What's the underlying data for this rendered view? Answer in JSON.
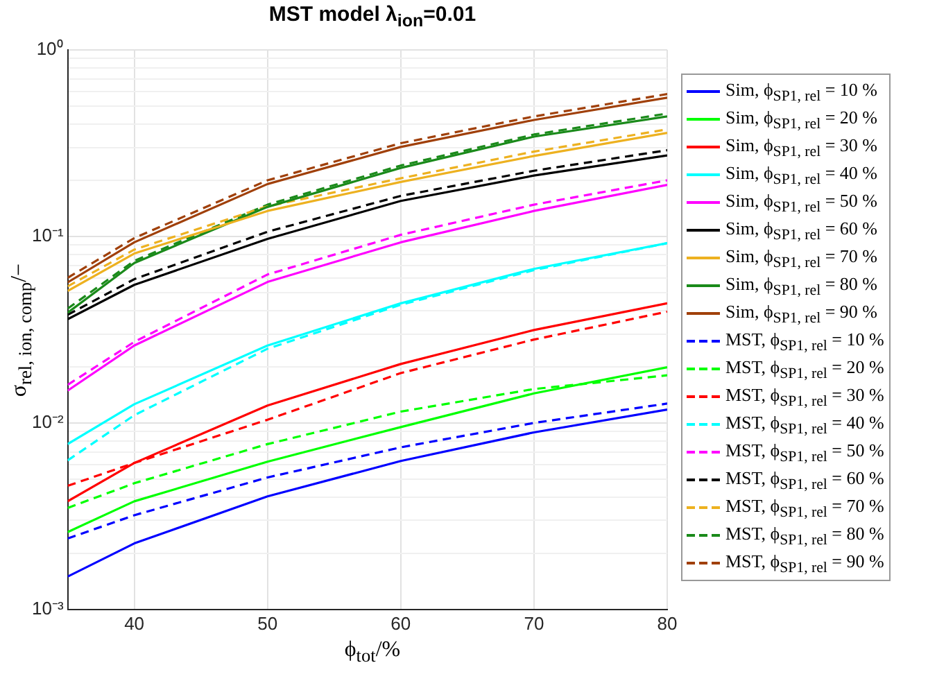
{
  "chart_data": {
    "type": "line",
    "title": "MST model λ$_{ion}$=0.01",
    "xlabel": "ϕ$_{tot}$/%",
    "ylabel": "σ$_{rel, ion, comp}$/−",
    "x": [
      35,
      40,
      50,
      60,
      70,
      80
    ],
    "xlim": [
      35,
      80
    ],
    "xticks": [
      40,
      50,
      60,
      70,
      80
    ],
    "ylim": [
      0.001,
      1
    ],
    "log": "y",
    "yticks": [
      {
        "value": 0.001,
        "label": "10⁻³"
      },
      {
        "value": 0.002,
        "label": null
      },
      {
        "value": 0.003,
        "label": null
      },
      {
        "value": 0.004,
        "label": null
      },
      {
        "value": 0.005,
        "label": null
      },
      {
        "value": 0.006,
        "label": null
      },
      {
        "value": 0.007,
        "label": null
      },
      {
        "value": 0.008,
        "label": null
      },
      {
        "value": 0.009,
        "label": null
      },
      {
        "value": 0.01,
        "label": "10⁻²"
      },
      {
        "value": 0.02,
        "label": null
      },
      {
        "value": 0.03,
        "label": null
      },
      {
        "value": 0.04,
        "label": null
      },
      {
        "value": 0.05,
        "label": null
      },
      {
        "value": 0.06,
        "label": null
      },
      {
        "value": 0.07,
        "label": null
      },
      {
        "value": 0.08,
        "label": null
      },
      {
        "value": 0.09,
        "label": null
      },
      {
        "value": 0.1,
        "label": "10⁻¹"
      },
      {
        "value": 0.2,
        "label": null
      },
      {
        "value": 0.3,
        "label": null
      },
      {
        "value": 0.4,
        "label": null
      },
      {
        "value": 0.5,
        "label": null
      },
      {
        "value": 0.6,
        "label": null
      },
      {
        "value": 0.7,
        "label": null
      },
      {
        "value": 0.8,
        "label": null
      },
      {
        "value": 0.9,
        "label": null
      },
      {
        "value": 1,
        "label": "10⁰"
      }
    ],
    "grid": true,
    "legend": "right",
    "marker": "none",
    "series": [
      {
        "name": "Sim, ϕ$_{SP1, rel}$ = 10 %",
        "color": "#0000ff",
        "line_style": "solid",
        "values": [
          0.0015,
          0.00226,
          0.00404,
          0.00625,
          0.0089,
          0.0118
        ]
      },
      {
        "name": "Sim, ϕ$_{SP1, rel}$ = 20 %",
        "color": "#00ff00",
        "line_style": "solid",
        "values": [
          0.0026,
          0.0038,
          0.0062,
          0.0095,
          0.0144,
          0.0199
        ]
      },
      {
        "name": "Sim, ϕ$_{SP1, rel}$ = 30 %",
        "color": "#ff0000",
        "line_style": "solid",
        "values": [
          0.0038,
          0.0061,
          0.0124,
          0.0207,
          0.0315,
          0.0438
        ]
      },
      {
        "name": "Sim, ϕ$_{SP1, rel}$ = 40 %",
        "color": "#00ffff",
        "line_style": "solid",
        "values": [
          0.0077,
          0.0126,
          0.026,
          0.0438,
          0.067,
          0.092
        ]
      },
      {
        "name": "Sim, ϕ$_{SP1, rel}$ = 50 %",
        "color": "#ff00ff",
        "line_style": "solid",
        "values": [
          0.0149,
          0.026,
          0.057,
          0.093,
          0.137,
          0.189
        ]
      },
      {
        "name": "Sim, ϕ$_{SP1, rel}$ = 60 %",
        "color": "#000000",
        "line_style": "solid",
        "values": [
          0.036,
          0.055,
          0.097,
          0.155,
          0.212,
          0.272
        ]
      },
      {
        "name": "Sim, ϕ$_{SP1, rel}$ = 70 %",
        "color": "#edb120",
        "line_style": "solid",
        "values": [
          0.051,
          0.081,
          0.137,
          0.196,
          0.27,
          0.359
        ]
      },
      {
        "name": "Sim, ϕ$_{SP1, rel}$ = 80 %",
        "color": "#1a8a1a",
        "line_style": "solid",
        "values": [
          0.039,
          0.072,
          0.144,
          0.233,
          0.343,
          0.44
        ]
      },
      {
        "name": "Sim, ϕ$_{SP1, rel}$ = 90 %",
        "color": "#a0400a",
        "line_style": "solid",
        "values": [
          0.0567,
          0.093,
          0.191,
          0.302,
          0.421,
          0.555
        ]
      },
      {
        "name": "MST, ϕ$_{SP1, rel}$ = 10 %",
        "color": "#0000ff",
        "line_style": "dashed",
        "values": [
          0.0024,
          0.0032,
          0.0051,
          0.0074,
          0.01,
          0.0127
        ]
      },
      {
        "name": "MST, ϕ$_{SP1, rel}$ = 20 %",
        "color": "#00ff00",
        "line_style": "dashed",
        "values": [
          0.0035,
          0.00475,
          0.0077,
          0.0115,
          0.0152,
          0.018
        ]
      },
      {
        "name": "MST, ϕ$_{SP1, rel}$ = 30 %",
        "color": "#ff0000",
        "line_style": "dashed",
        "values": [
          0.0046,
          0.0061,
          0.0104,
          0.0185,
          0.028,
          0.0395
        ]
      },
      {
        "name": "MST, ϕ$_{SP1, rel}$ = 40 %",
        "color": "#00ffff",
        "line_style": "dashed",
        "values": [
          0.0063,
          0.011,
          0.025,
          0.043,
          0.066,
          0.092
        ]
      },
      {
        "name": "MST, ϕ$_{SP1, rel}$ = 50 %",
        "color": "#ff00ff",
        "line_style": "dashed",
        "values": [
          0.016,
          0.0272,
          0.0625,
          0.102,
          0.148,
          0.2
        ]
      },
      {
        "name": "MST, ϕ$_{SP1, rel}$ = 60 %",
        "color": "#000000",
        "line_style": "dashed",
        "values": [
          0.038,
          0.059,
          0.106,
          0.165,
          0.225,
          0.29
        ]
      },
      {
        "name": "MST, ϕ$_{SP1, rel}$ = 70 %",
        "color": "#edb120",
        "line_style": "dashed",
        "values": [
          0.054,
          0.085,
          0.145,
          0.205,
          0.285,
          0.375
        ]
      },
      {
        "name": "MST, ϕ$_{SP1, rel}$ = 80 %",
        "color": "#1a8a1a",
        "line_style": "dashed",
        "values": [
          0.041,
          0.074,
          0.148,
          0.24,
          0.352,
          0.456
        ]
      },
      {
        "name": "MST, ϕ$_{SP1, rel}$ = 90 %",
        "color": "#a0400a",
        "line_style": "dashed",
        "values": [
          0.06,
          0.098,
          0.2,
          0.316,
          0.44,
          0.58
        ]
      }
    ]
  }
}
